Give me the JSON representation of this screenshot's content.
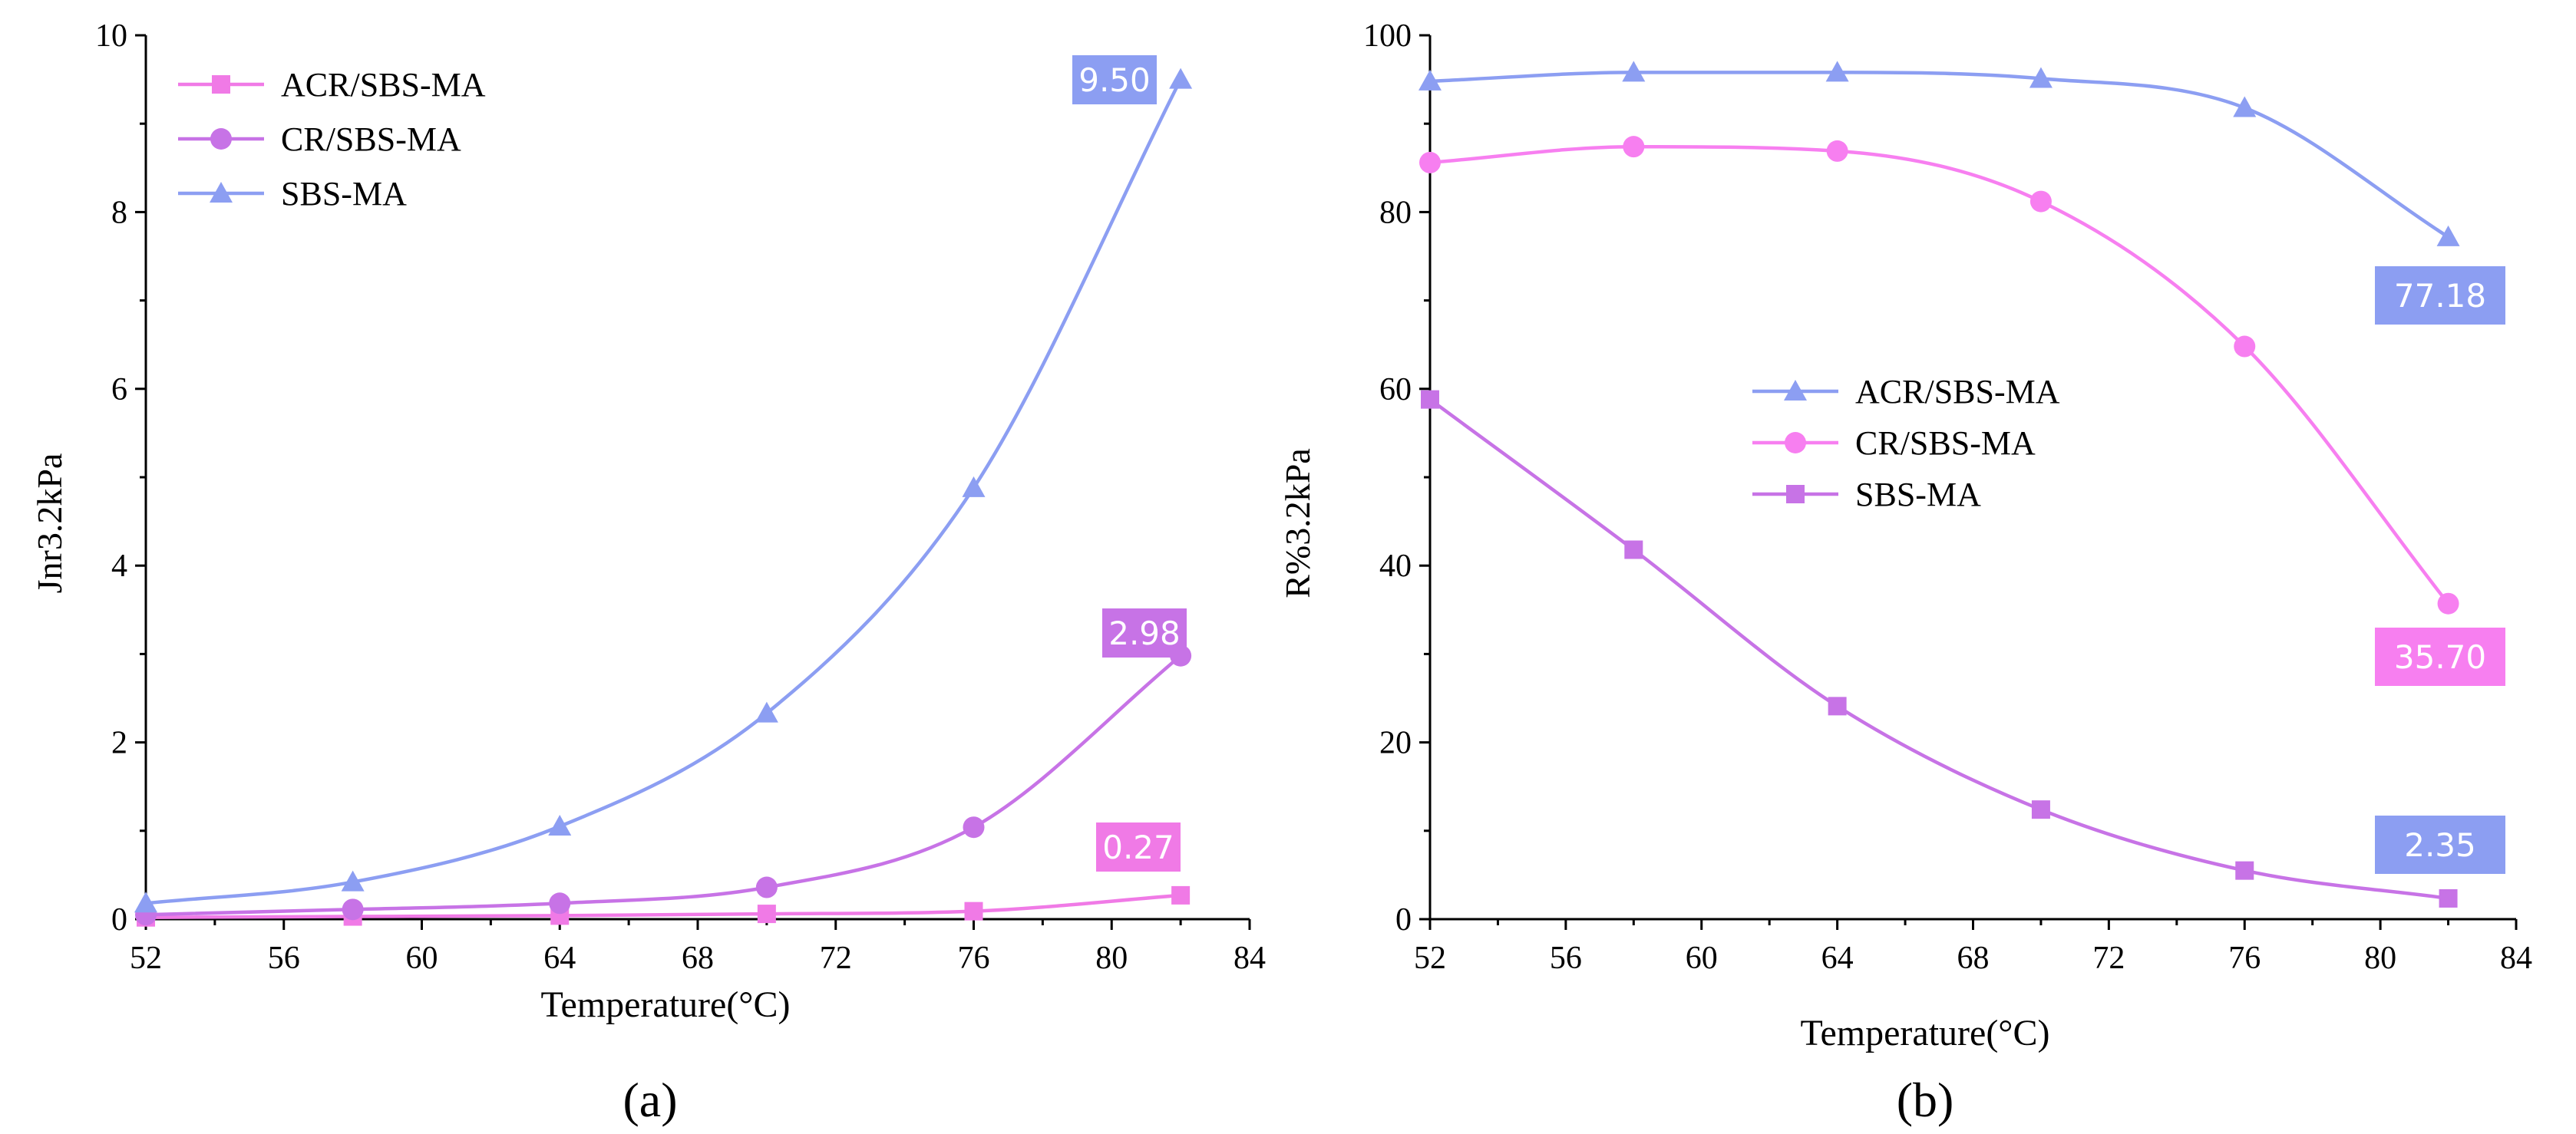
{
  "chart_data": [
    {
      "type": "line",
      "panel_label": "(a)",
      "title": "",
      "xlabel": "Temperature(°C)",
      "ylabel": "Jnr3.2kPa",
      "xlim": [
        52,
        84
      ],
      "ylim": [
        0,
        10
      ],
      "x_ticks": [
        52,
        56,
        60,
        64,
        68,
        72,
        76,
        80,
        84
      ],
      "y_ticks": [
        0,
        2,
        4,
        6,
        8,
        10
      ],
      "legend_position": "top-left",
      "x": [
        52,
        58,
        64,
        70,
        76,
        82
      ],
      "series": [
        {
          "name": "ACR/SBS-MA",
          "marker": "square",
          "color": "#f07ae6",
          "values": [
            0.02,
            0.03,
            0.04,
            0.06,
            0.09,
            0.27
          ],
          "end_label": "0.27",
          "label_color": "#f07ae6"
        },
        {
          "name": "CR/SBS-MA",
          "marker": "circle",
          "color": "#c773e6",
          "values": [
            0.05,
            0.11,
            0.18,
            0.36,
            1.04,
            2.98
          ],
          "end_label": "2.98",
          "label_color": "#c773e6"
        },
        {
          "name": "SBS-MA",
          "marker": "triangle",
          "color": "#8c9ef2",
          "values": [
            0.18,
            0.42,
            1.05,
            2.33,
            4.88,
            9.5
          ],
          "end_label": "9.50",
          "label_color": "#8c9ef2"
        }
      ]
    },
    {
      "type": "line",
      "panel_label": "(b)",
      "title": "",
      "xlabel": "Temperature(°C)",
      "ylabel": "R%3.2kPa",
      "xlim": [
        52,
        84
      ],
      "ylim": [
        0,
        100
      ],
      "x_ticks": [
        52,
        56,
        60,
        64,
        68,
        72,
        76,
        80,
        84
      ],
      "y_ticks": [
        0,
        20,
        40,
        60,
        80,
        100
      ],
      "legend_position": "center",
      "x": [
        52,
        58,
        64,
        70,
        76,
        82
      ],
      "series": [
        {
          "name": "ACR/SBS-MA",
          "marker": "triangle",
          "color": "#8c9ef2",
          "values": [
            94.8,
            95.8,
            95.8,
            95.1,
            91.8,
            77.18
          ],
          "end_label": "77.18",
          "label_color": "#8c9ef2"
        },
        {
          "name": "CR/SBS-MA",
          "marker": "circle",
          "color": "#f77ff0",
          "values": [
            85.6,
            87.4,
            86.9,
            81.2,
            64.8,
            35.7
          ],
          "end_label": "35.70",
          "label_color": "#f77ff0"
        },
        {
          "name": "SBS-MA",
          "marker": "square",
          "color": "#c773e6",
          "values": [
            58.8,
            41.8,
            24.1,
            12.4,
            5.5,
            2.35
          ],
          "end_label": "2.35",
          "label_color": "#8c9ef2"
        }
      ]
    }
  ]
}
